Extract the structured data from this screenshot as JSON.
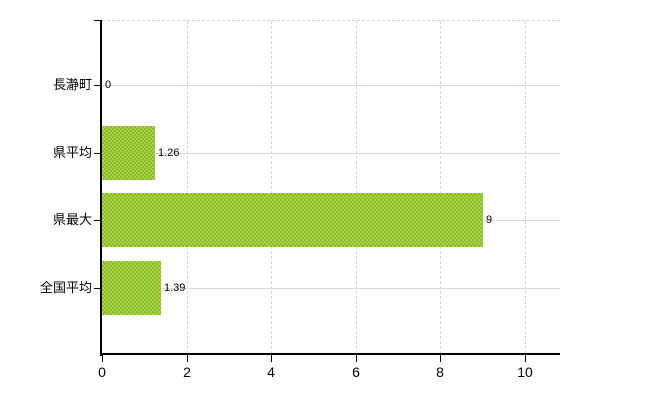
{
  "window": {
    "background_color": "#ffffff"
  },
  "chart_data": {
    "type": "bar",
    "orientation": "horizontal",
    "title": "",
    "xlabel": "",
    "ylabel": "",
    "categories": [
      "長瀞町",
      "県平均",
      "県最大",
      "全国平均"
    ],
    "values": [
      0,
      1.26,
      9,
      1.39
    ],
    "value_labels": [
      "0",
      "1.26",
      "9",
      "1.39"
    ],
    "x_ticks": [
      0,
      2,
      4,
      6,
      8,
      10
    ],
    "x_tick_labels": [
      "0",
      "2",
      "4",
      "6",
      "8",
      "10"
    ],
    "xlim": [
      0,
      10.83
    ],
    "grid": true,
    "legend": "none",
    "colors": {
      "bar_fill": "#9cc837",
      "bar_fill_light": "#a8d143",
      "bar_fill_dark": "#8cbd2d",
      "h_gridline": "#d4dbd0",
      "v_gridline": "#d9d5d9",
      "plot_top_border": "#d2d2d2",
      "axis": "#000000",
      "text": "#000000"
    }
  }
}
